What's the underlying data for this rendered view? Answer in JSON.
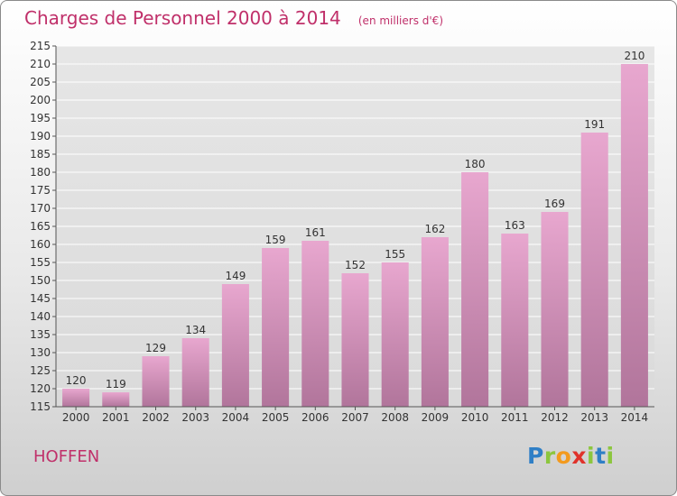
{
  "header": {
    "title": "Charges de Personnel 2000 à 2014",
    "subtitle": "(en milliers d'€)"
  },
  "footer": {
    "commune": "HOFFEN",
    "logo_letters": [
      "P",
      "r",
      "o",
      "x",
      "i",
      "t",
      "i"
    ],
    "logo_colors": [
      "#2f7fc6",
      "#8cc63e",
      "#f39a1e",
      "#e0322b",
      "#8cc63e",
      "#2f7fc6",
      "#8cc63e"
    ]
  },
  "chart_data": {
    "type": "bar",
    "title": "Charges de Personnel 2000 à 2014",
    "subtitle": "(en milliers d'€)",
    "categories": [
      "2000",
      "2001",
      "2002",
      "2003",
      "2004",
      "2005",
      "2006",
      "2007",
      "2008",
      "2009",
      "2010",
      "2011",
      "2012",
      "2013",
      "2014"
    ],
    "values": [
      120,
      119,
      129,
      134,
      149,
      159,
      161,
      152,
      155,
      162,
      180,
      163,
      169,
      191,
      210
    ],
    "ylim": [
      115,
      215
    ],
    "ytick_step": 5,
    "grid": true,
    "xlabel": "",
    "ylabel": "",
    "colors": {
      "bar_top": "#e8a7cf",
      "bar_bottom": "#b1759b",
      "grid": "#ffffff",
      "text": "#333333"
    }
  }
}
